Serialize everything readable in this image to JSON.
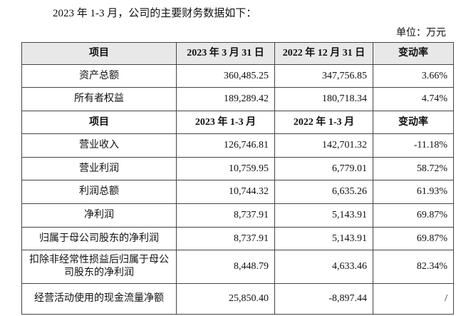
{
  "intro": "2023 年 1-3 月，公司的主要财务数据如下：",
  "unit": "单位：万元",
  "table": {
    "rows": [
      [
        "项目",
        "2023 年 3 月 31 日",
        "2022 年 12 月 31 日",
        "变动率"
      ],
      [
        "资产总额",
        "360,485.25",
        "347,756.85",
        "3.66%"
      ],
      [
        "所有者权益",
        "189,289.42",
        "180,718.34",
        "4.74%"
      ],
      [
        "项目",
        "2023 年 1-3 月",
        "2022 年 1-3 月",
        "变动率"
      ],
      [
        "营业收入",
        "126,746.81",
        "142,701.32",
        "-11.18%"
      ],
      [
        "营业利润",
        "10,759.95",
        "6,779.01",
        "58.72%"
      ],
      [
        "利润总额",
        "10,744.32",
        "6,635.26",
        "61.93%"
      ],
      [
        "净利润",
        "8,737.91",
        "5,143.91",
        "69.87%"
      ],
      [
        "归属于母公司股东的净利润",
        "8,737.91",
        "5,143.91",
        "69.87%"
      ],
      [
        "扣除非经常性损益后归属于母公司股东的净利润",
        "8,448.79",
        "4,633.46",
        "82.34%"
      ],
      [
        "经营活动使用的现金流量净额",
        "25,850.40",
        "-8,897.44",
        "/"
      ]
    ]
  }
}
